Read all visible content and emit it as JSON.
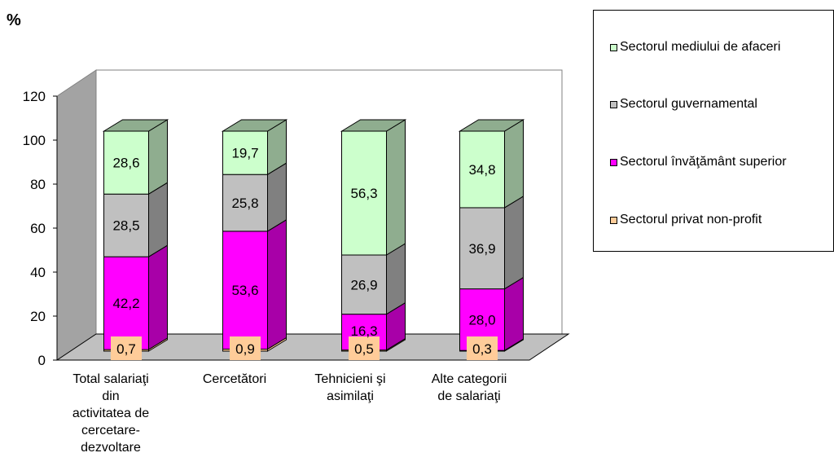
{
  "chart_data": {
    "type": "bar",
    "stacked": true,
    "three_d": true,
    "unit_label": "%",
    "title": "",
    "xlabel": "",
    "ylabel": "",
    "ylim": [
      0,
      120
    ],
    "yticks": [
      0,
      20,
      40,
      60,
      80,
      100,
      120
    ],
    "grid": false,
    "legend_position": "right",
    "categories": [
      "Total salariaţi din activitatea de cercetare-dezvoltare",
      "Cercetători",
      "Tehnicieni şi asimilaţi",
      "Alte categorii de salariaţi"
    ],
    "category_lines": [
      [
        "Total salariaţi",
        "din",
        "activitatea de",
        "cercetare-",
        "dezvoltare"
      ],
      [
        "Cercetători"
      ],
      [
        "Tehnicieni şi",
        "asimilaţi"
      ],
      [
        "Alte categorii",
        "de salariaţi"
      ]
    ],
    "series": [
      {
        "name": "Sectorul privat non-profit",
        "color": "#ffcc99",
        "side": "#ffcc99",
        "labels": [
          "0,7",
          "0,9",
          "0,5",
          "0,3"
        ],
        "values": [
          0.7,
          0.9,
          0.5,
          0.3
        ]
      },
      {
        "name": "Sectorul învăţământ superior",
        "color": "#ff00ff",
        "side": "#a800a8",
        "labels": [
          "42,2",
          "53,6",
          "16,3",
          "28,0"
        ],
        "values": [
          42.2,
          53.6,
          16.3,
          28.0
        ]
      },
      {
        "name": "Sectorul guvernamental",
        "color": "#c0c0c0",
        "side": "#808080",
        "labels": [
          "28,5",
          "25,8",
          "26,9",
          "36,9"
        ],
        "values": [
          28.5,
          25.8,
          26.9,
          36.9
        ]
      },
      {
        "name": "Sectorul mediului de afaceri",
        "color": "#ccffcc",
        "side": "#8fad8f",
        "labels": [
          "28,6",
          "19,7",
          "56,3",
          "34,8"
        ],
        "values": [
          28.6,
          19.7,
          56.3,
          34.8
        ]
      }
    ],
    "legend_order": [
      3,
      2,
      1,
      0
    ]
  }
}
